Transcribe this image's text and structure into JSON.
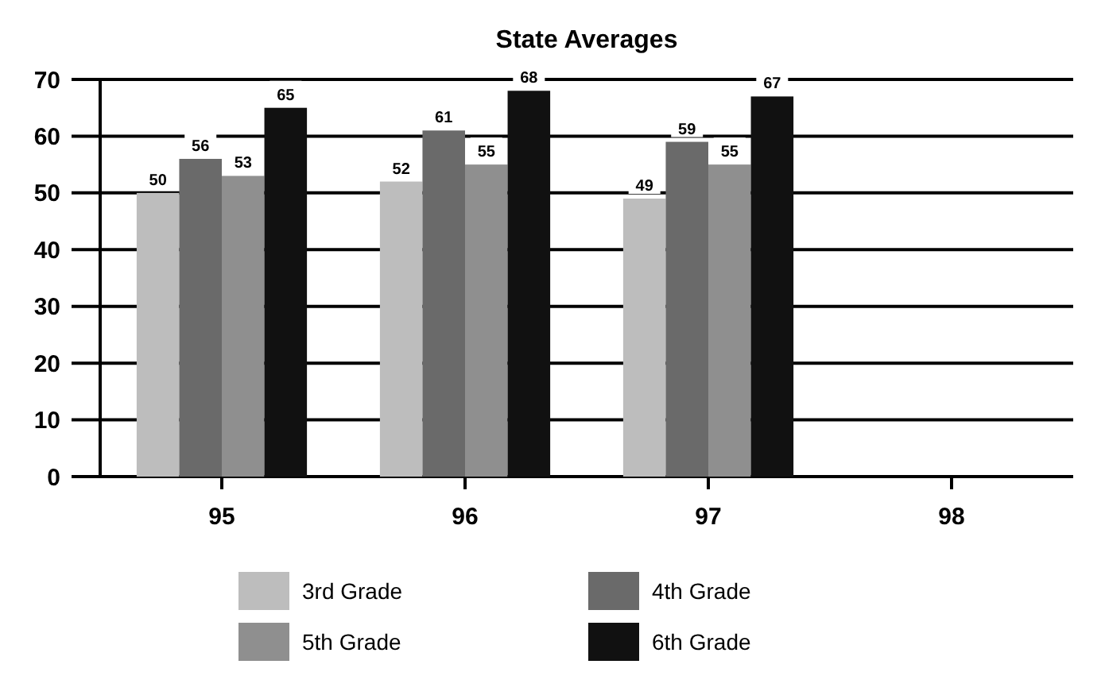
{
  "chart_data": {
    "type": "bar",
    "title": "State Averages",
    "categories": [
      "95",
      "96",
      "97",
      "98"
    ],
    "series": [
      {
        "name": "3rd Grade",
        "color": "#bdbdbd",
        "values": [
          50,
          52,
          49,
          null
        ]
      },
      {
        "name": "4th Grade",
        "color": "#6a6a6a",
        "values": [
          56,
          61,
          59,
          null
        ]
      },
      {
        "name": "5th Grade",
        "color": "#8f8f8f",
        "values": [
          53,
          55,
          55,
          null
        ]
      },
      {
        "name": "6th Grade",
        "color": "#111111",
        "values": [
          65,
          68,
          67,
          null
        ]
      }
    ],
    "ylim": [
      0,
      70
    ],
    "yticks": [
      0,
      10,
      20,
      30,
      40,
      50,
      60,
      70
    ],
    "grid": "y",
    "legend": "bottom",
    "data_labels": true
  }
}
